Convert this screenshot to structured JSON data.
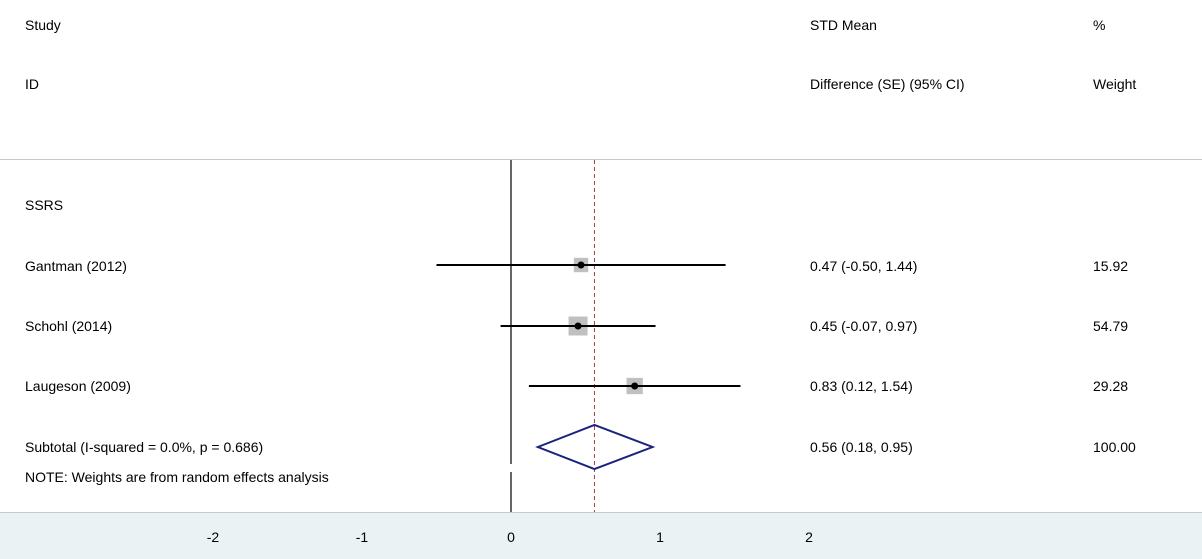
{
  "header": {
    "study_label": "Study",
    "id_label": "ID",
    "effect_label_1": "STD Mean",
    "effect_label_2": "Difference (SE) (95% CI)",
    "weight_label_1": "%",
    "weight_label_2": "Weight"
  },
  "group_label": "SSRS",
  "note": "NOTE: Weights are from random effects analysis",
  "colors": {
    "ci_line": "#000000",
    "weight_box": "#c0c0c0",
    "overall_line": "#a04040",
    "diamond": "#1a237e",
    "axis_band": "#eaf2f3"
  },
  "chart_data": {
    "type": "forest",
    "x_range": [
      -3.0,
      2.0
    ],
    "reference_line": 0,
    "overall_effect": 0.56,
    "xticks": [
      -2,
      -1,
      0,
      1,
      2
    ],
    "xtick_labels": [
      "-2",
      "-1",
      "0",
      "1",
      "2"
    ],
    "studies": [
      {
        "label": "Gantman (2012)",
        "estimate": 0.47,
        "lower": -0.5,
        "upper": 1.44,
        "text": "0.47 (-0.50, 1.44)",
        "weight": 15.92,
        "weight_text": "15.92"
      },
      {
        "label": "Schohl (2014)",
        "estimate": 0.45,
        "lower": -0.07,
        "upper": 0.97,
        "text": "0.45 (-0.07, 0.97)",
        "weight": 54.79,
        "weight_text": "54.79"
      },
      {
        "label": "Laugeson (2009)",
        "estimate": 0.83,
        "lower": 0.12,
        "upper": 1.54,
        "text": "0.83 (0.12, 1.54)",
        "weight": 29.28,
        "weight_text": "29.28"
      }
    ],
    "subtotal": {
      "label": "Subtotal  (I-squared = 0.0%, p = 0.686)",
      "estimate": 0.56,
      "lower": 0.18,
      "upper": 0.95,
      "text": "0.56 (0.18, 0.95)",
      "weight_text": "100.00"
    }
  }
}
